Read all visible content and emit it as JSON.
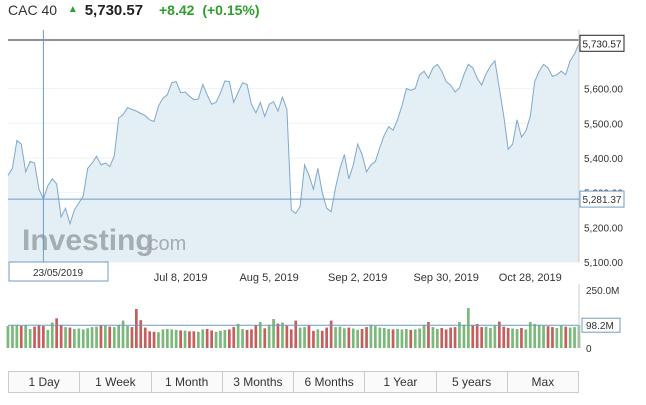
{
  "header": {
    "index_name": "CAC 40",
    "price": "5,730.57",
    "change": "+8.42",
    "change_pct": "(+0.15%)",
    "arrow_icon": "up-triangle-icon",
    "up_color": "#2e9e2e"
  },
  "watermark": {
    "brand": "Investing",
    "suffix": ".com"
  },
  "range_buttons": [
    "1 Day",
    "1 Week",
    "1 Month",
    "3 Months",
    "6 Months",
    "1 Year",
    "5 years",
    "Max"
  ],
  "chart_data": {
    "type": "area",
    "price_axis": {
      "ticks": [
        5100,
        5200,
        5300,
        5400,
        5500,
        5600
      ],
      "tick_labels": [
        "5,100.00",
        "5,200.00",
        "5,300.00",
        "5,400.00",
        "5,500.00",
        "5,600.00"
      ],
      "range": [
        5100,
        5740
      ]
    },
    "date_axis": {
      "labels": [
        "2019",
        "Jul 8, 2019",
        "Aug 5, 2019",
        "Sep 2, 2019",
        "Sep 30, 2019",
        "Oct 28, 2019"
      ],
      "label_index": [
        15,
        39,
        59,
        79,
        99,
        118
      ]
    },
    "crosshair": {
      "date": "23/05/2019",
      "value": 5281.37,
      "value_label": "5,281.37",
      "index": 8
    },
    "last_price": {
      "value": 5730.57,
      "label": "5,730.57"
    },
    "series": [
      5350,
      5370,
      5450,
      5440,
      5360,
      5390,
      5385,
      5310,
      5281.37,
      5320,
      5340,
      5325,
      5230,
      5255,
      5210,
      5250,
      5270,
      5290,
      5370,
      5385,
      5405,
      5380,
      5385,
      5375,
      5405,
      5515,
      5525,
      5545,
      5540,
      5535,
      5528,
      5522,
      5510,
      5505,
      5550,
      5572,
      5582,
      5617,
      5620,
      5588,
      5590,
      5578,
      5568,
      5570,
      5612,
      5582,
      5555,
      5560,
      5588,
      5622,
      5620,
      5560,
      5590,
      5617,
      5612,
      5555,
      5530,
      5560,
      5520,
      5555,
      5562,
      5535,
      5575,
      5540,
      5250,
      5240,
      5260,
      5380,
      5350,
      5310,
      5370,
      5300,
      5255,
      5245,
      5315,
      5370,
      5410,
      5340,
      5380,
      5440,
      5410,
      5360,
      5380,
      5390,
      5430,
      5465,
      5490,
      5480,
      5510,
      5550,
      5600,
      5595,
      5600,
      5640,
      5650,
      5630,
      5660,
      5670,
      5650,
      5620,
      5610,
      5590,
      5602,
      5640,
      5670,
      5660,
      5630,
      5610,
      5642,
      5665,
      5680,
      5602,
      5520,
      5425,
      5440,
      5510,
      5460,
      5478,
      5520,
      5620,
      5650,
      5670,
      5660,
      5635,
      5640,
      5650,
      5640,
      5680,
      5700,
      5730.57
    ]
  },
  "volume_data": {
    "type": "bar",
    "axis_labels": [
      "250.0M",
      "98.2M",
      "0"
    ],
    "axis_values": [
      250000000,
      98200000,
      0
    ],
    "current_value": 98200000,
    "average_line": 98200000,
    "colors": {
      "up": "#7ab97a",
      "down": "#c45f5f"
    },
    "values": [
      95000000,
      98000000,
      100000000,
      95000000,
      97000000,
      82000000,
      92000000,
      100000000,
      95000000,
      78000000,
      110000000,
      128000000,
      100000000,
      90000000,
      88000000,
      82000000,
      84000000,
      80000000,
      85000000,
      90000000,
      92000000,
      98000000,
      96000000,
      92000000,
      90000000,
      100000000,
      118000000,
      95000000,
      90000000,
      168000000,
      120000000,
      88000000,
      72000000,
      70000000,
      68000000,
      80000000,
      82000000,
      80000000,
      78000000,
      76000000,
      75000000,
      72000000,
      72000000,
      70000000,
      80000000,
      82000000,
      76000000,
      70000000,
      74000000,
      78000000,
      80000000,
      90000000,
      104000000,
      82000000,
      78000000,
      80000000,
      98000000,
      112000000,
      85000000,
      100000000,
      125000000,
      105000000,
      110000000,
      96000000,
      80000000,
      118000000,
      88000000,
      90000000,
      98000000,
      74000000,
      80000000,
      74000000,
      88000000,
      118000000,
      90000000,
      92000000,
      85000000,
      88000000,
      84000000,
      78000000,
      82000000,
      90000000,
      100000000,
      95000000,
      88000000,
      86000000,
      82000000,
      80000000,
      82000000,
      80000000,
      82000000,
      78000000,
      80000000,
      84000000,
      98000000,
      112000000,
      90000000,
      82000000,
      86000000,
      80000000,
      88000000,
      90000000,
      112000000,
      100000000,
      172000000,
      98000000,
      104000000,
      90000000,
      92000000,
      86000000,
      96000000,
      114000000,
      92000000,
      86000000,
      84000000,
      82000000,
      86000000,
      80000000,
      112000000,
      104000000,
      100000000,
      96000000,
      94000000,
      90000000,
      86000000,
      96000000,
      92000000,
      88000000,
      90000000,
      98200000
    ],
    "direction": [
      1,
      1,
      1,
      0,
      1,
      1,
      0,
      0,
      0,
      1,
      1,
      0,
      0,
      1,
      0,
      1,
      1,
      1,
      1,
      1,
      1,
      0,
      1,
      0,
      1,
      1,
      1,
      1,
      0,
      0,
      0,
      0,
      0,
      0,
      1,
      1,
      1,
      1,
      1,
      0,
      1,
      0,
      0,
      1,
      1,
      0,
      0,
      1,
      1,
      1,
      0,
      0,
      1,
      1,
      0,
      0,
      0,
      1,
      0,
      1,
      1,
      0,
      1,
      0,
      0,
      0,
      1,
      1,
      0,
      0,
      1,
      0,
      0,
      0,
      1,
      1,
      1,
      0,
      1,
      1,
      0,
      0,
      1,
      1,
      1,
      1,
      1,
      0,
      1,
      1,
      1,
      0,
      1,
      1,
      1,
      0,
      1,
      1,
      0,
      0,
      0,
      0,
      1,
      1,
      1,
      0,
      0,
      0,
      1,
      1,
      1,
      0,
      0,
      0,
      1,
      1,
      0,
      1,
      1,
      1,
      1,
      1,
      0,
      0,
      1,
      1,
      0,
      1,
      1,
      1
    ]
  }
}
